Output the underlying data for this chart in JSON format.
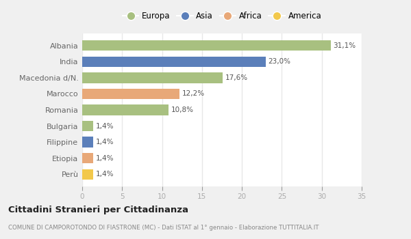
{
  "categories": [
    "Perù",
    "Etiopia",
    "Filippine",
    "Bulgaria",
    "Romania",
    "Marocco",
    "Macedonia d/N.",
    "India",
    "Albania"
  ],
  "values": [
    1.4,
    1.4,
    1.4,
    1.4,
    10.8,
    12.2,
    17.6,
    23.0,
    31.1
  ],
  "labels": [
    "1,4%",
    "1,4%",
    "1,4%",
    "1,4%",
    "10,8%",
    "12,2%",
    "17,6%",
    "23,0%",
    "31,1%"
  ],
  "colors": [
    "#f2c84b",
    "#e8a878",
    "#5b7fba",
    "#a8c080",
    "#a8c080",
    "#e8a878",
    "#a8c080",
    "#5b7fba",
    "#a8c080"
  ],
  "legend": [
    {
      "label": "Europa",
      "color": "#a8c080"
    },
    {
      "label": "Asia",
      "color": "#5b7fba"
    },
    {
      "label": "Africa",
      "color": "#e8a878"
    },
    {
      "label": "America",
      "color": "#f2c84b"
    }
  ],
  "xlim": [
    0,
    35
  ],
  "xticks": [
    0,
    5,
    10,
    15,
    20,
    25,
    30,
    35
  ],
  "title": "Cittadini Stranieri per Cittadinanza",
  "subtitle": "COMUNE DI CAMPOROTONDO DI FIASTRONE (MC) - Dati ISTAT al 1° gennaio - Elaborazione TUTTITALIA.IT",
  "background_color": "#f0f0f0",
  "plot_background": "#ffffff",
  "grid_color": "#e8e8e8",
  "bar_height": 0.65
}
